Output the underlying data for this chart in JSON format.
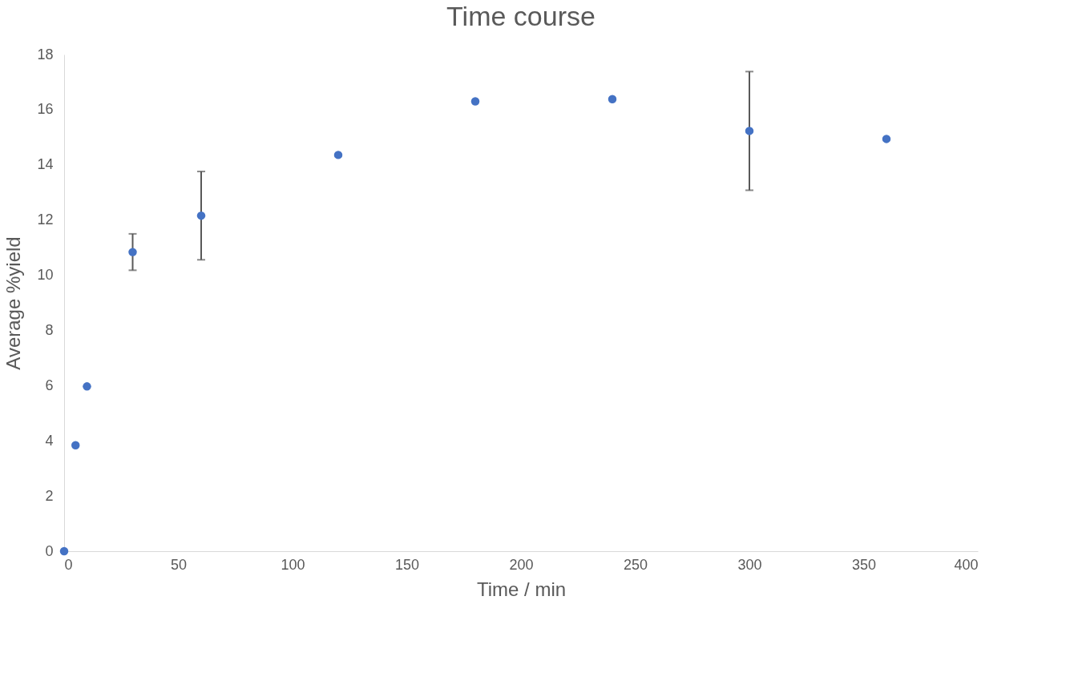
{
  "chart_data": {
    "type": "scatter",
    "title": "Time course",
    "xlabel": "Time / min",
    "ylabel": "Average %yield",
    "x": [
      0,
      5,
      10,
      30,
      60,
      120,
      180,
      240,
      300,
      360
    ],
    "series": [
      {
        "color": "#4472c4",
        "values": [
          0,
          3.84,
          5.97,
          10.84,
          12.16,
          14.36,
          16.3,
          16.38,
          15.23,
          14.94
        ],
        "errors": [
          null,
          null,
          null,
          0.66,
          1.6,
          null,
          null,
          null,
          2.15,
          null
        ]
      }
    ],
    "xlim": [
      0,
      400
    ],
    "xticks": [
      0,
      50,
      100,
      150,
      200,
      250,
      300,
      350,
      400
    ],
    "ylim": [
      0,
      18
    ],
    "yticks": [
      0,
      2,
      4,
      6,
      8,
      10,
      12,
      14,
      16,
      18
    ],
    "grid": false,
    "marker": "circle"
  }
}
